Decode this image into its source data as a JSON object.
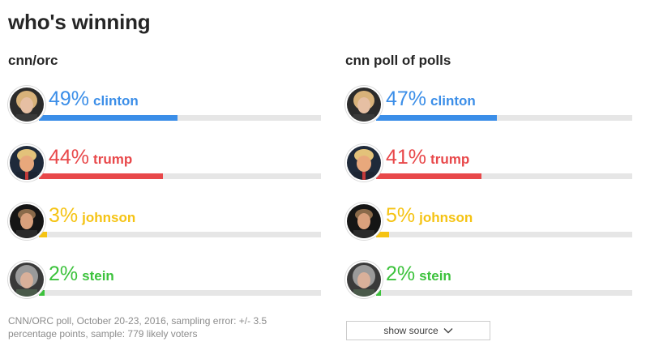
{
  "title": "who's winning",
  "polls": [
    {
      "title": "cnn/orc",
      "candidates": [
        {
          "name": "clinton",
          "pct_label": "49%",
          "value": 49,
          "color": "#3b8ee8"
        },
        {
          "name": "trump",
          "pct_label": "44%",
          "value": 44,
          "color": "#e8484a"
        },
        {
          "name": "johnson",
          "pct_label": "3%",
          "value": 3,
          "color": "#f5c313"
        },
        {
          "name": "stein",
          "pct_label": "2%",
          "value": 2,
          "color": "#3cc23c"
        }
      ]
    },
    {
      "title": "cnn poll of polls",
      "candidates": [
        {
          "name": "clinton",
          "pct_label": "47%",
          "value": 47,
          "color": "#3b8ee8"
        },
        {
          "name": "trump",
          "pct_label": "41%",
          "value": 41,
          "color": "#e8484a"
        },
        {
          "name": "johnson",
          "pct_label": "5%",
          "value": 5,
          "color": "#f5c313"
        },
        {
          "name": "stein",
          "pct_label": "2%",
          "value": 2,
          "color": "#3cc23c"
        }
      ]
    }
  ],
  "footnote": "CNN/ORC poll, October 20-23, 2016, sampling error: +/- 3.5 percentage points, sample: 779 likely voters",
  "source_button_label": "show source",
  "chart_data": [
    {
      "type": "bar",
      "title": "cnn/orc",
      "categories": [
        "clinton",
        "trump",
        "johnson",
        "stein"
      ],
      "values": [
        49,
        44,
        3,
        2
      ],
      "unit": "%",
      "ylim": [
        0,
        100
      ]
    },
    {
      "type": "bar",
      "title": "cnn poll of polls",
      "categories": [
        "clinton",
        "trump",
        "johnson",
        "stein"
      ],
      "values": [
        47,
        41,
        5,
        2
      ],
      "unit": "%",
      "ylim": [
        0,
        100
      ]
    }
  ]
}
